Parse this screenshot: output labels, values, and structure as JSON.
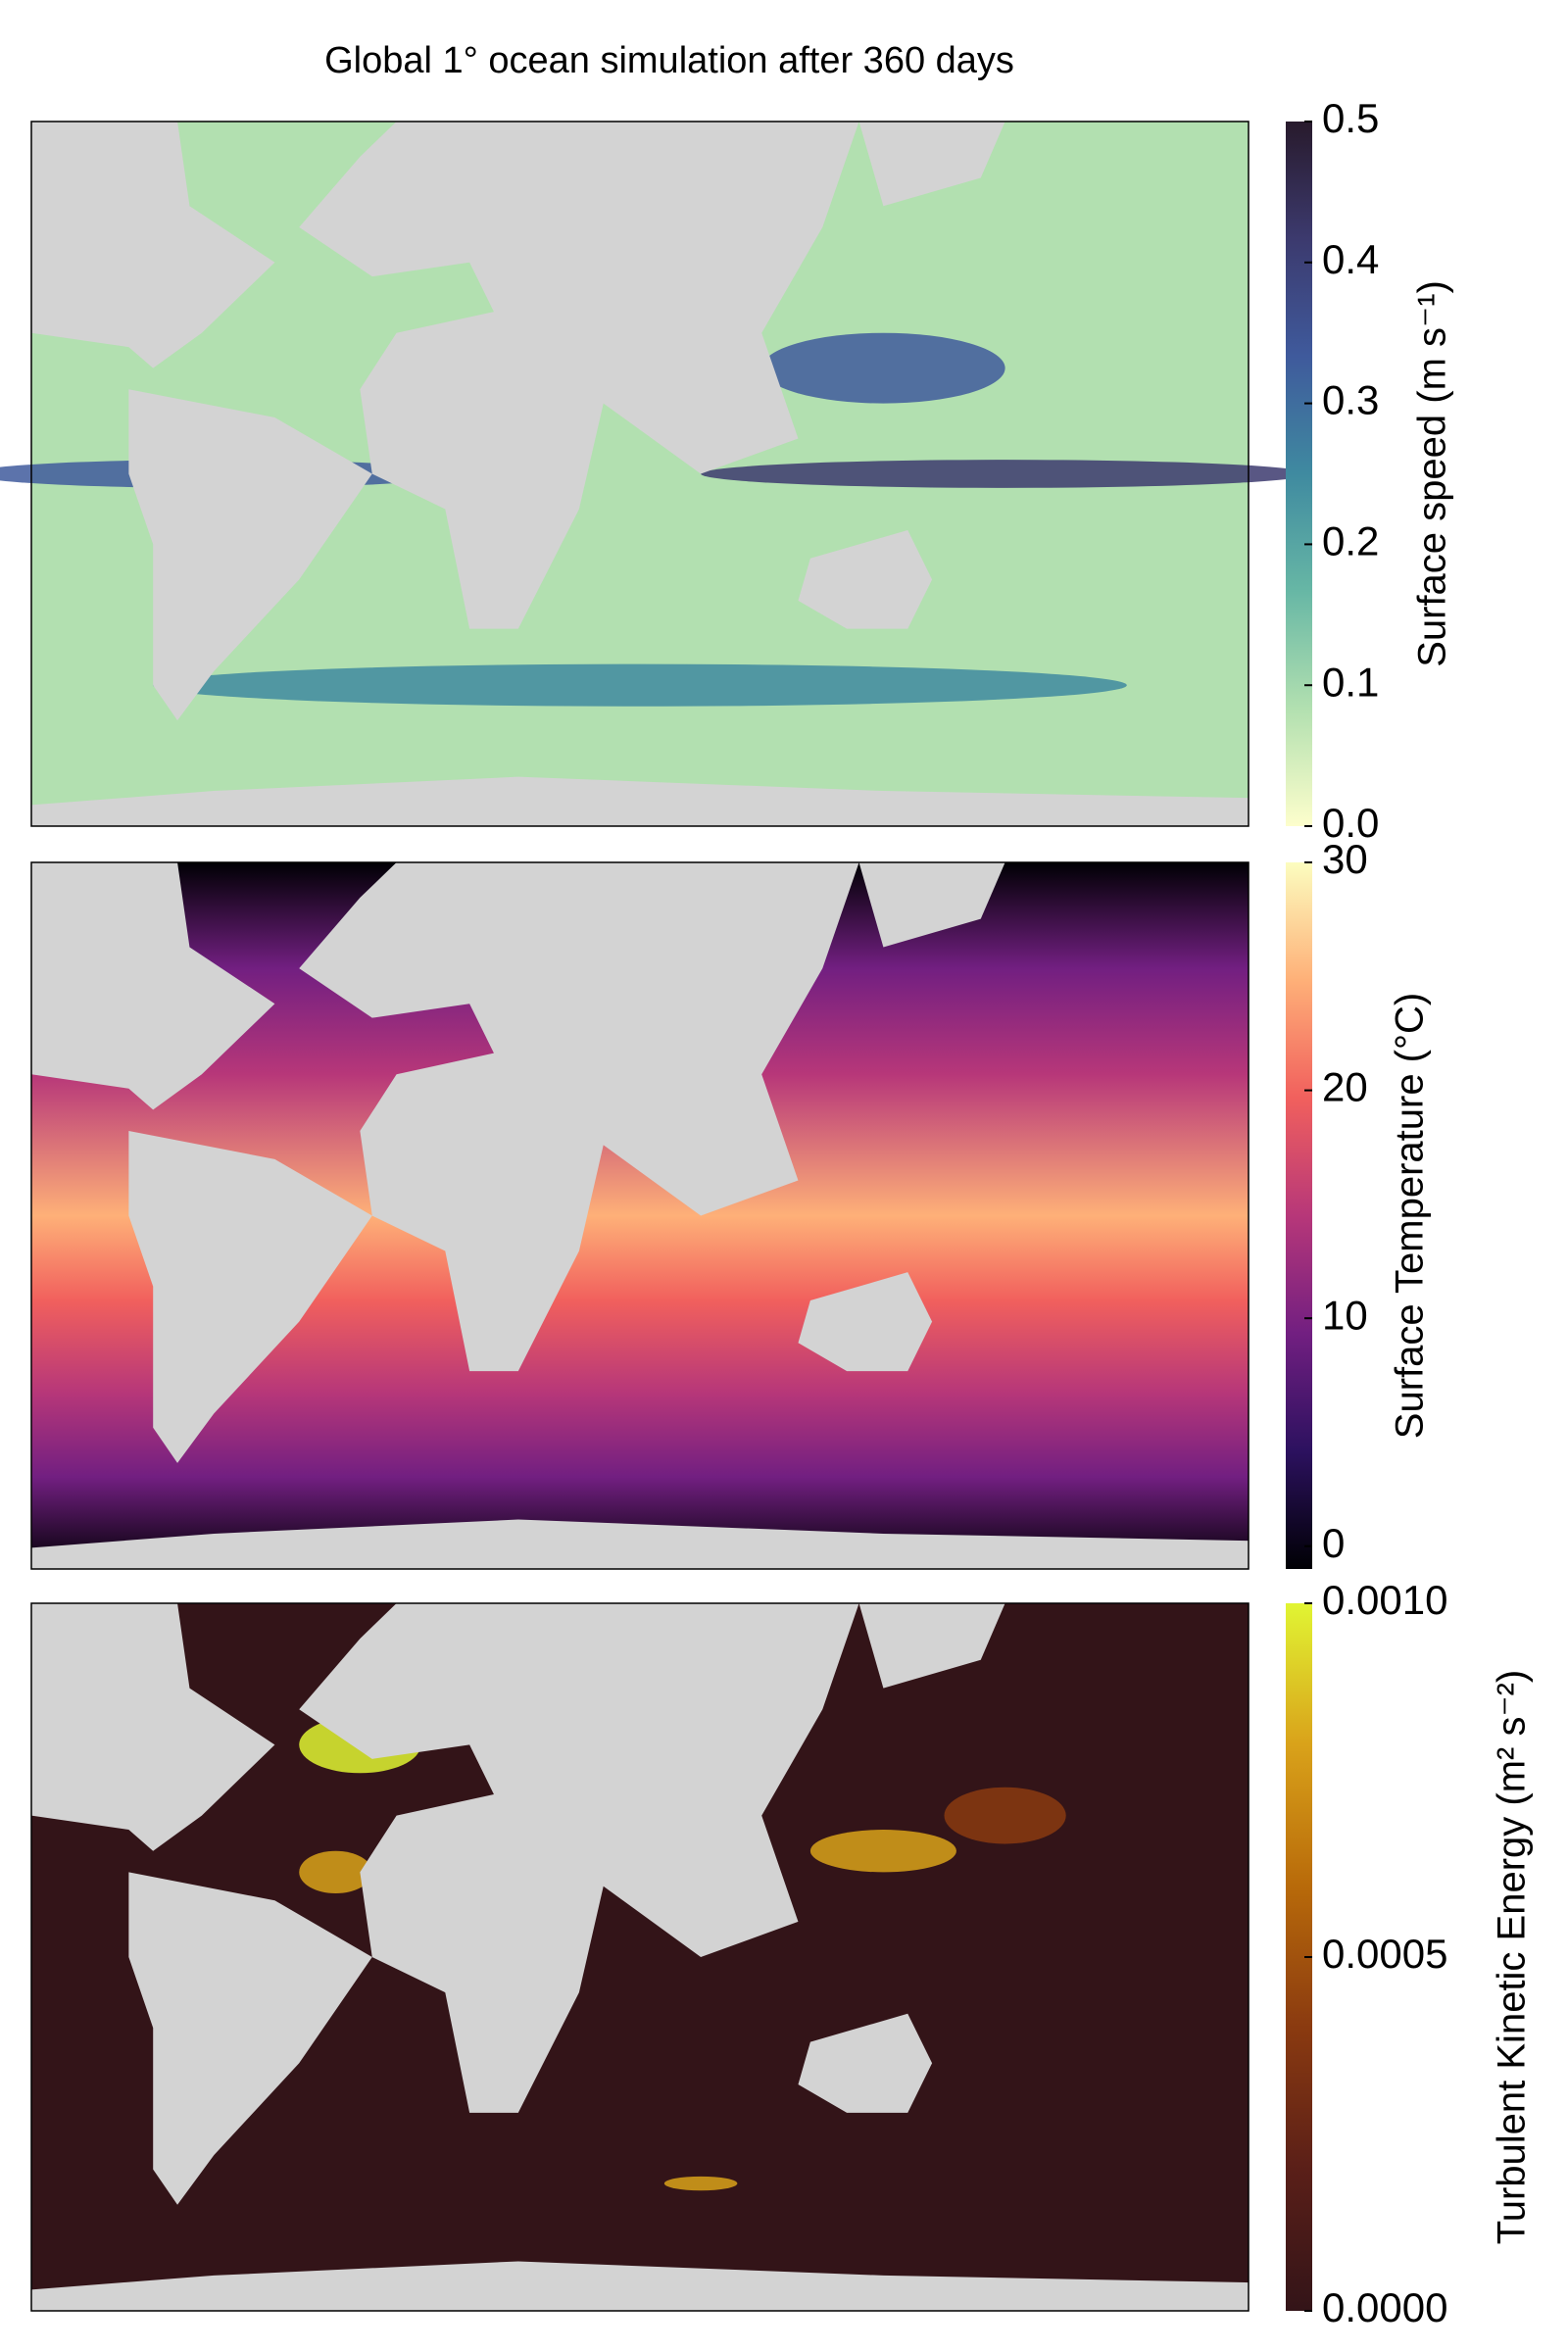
{
  "chart_data": [
    {
      "type": "heatmap",
      "title": "Global 1° ocean simulation after 360 days",
      "colorbar_label": "Surface speed (m s⁻¹)",
      "clim": [
        0,
        0.5
      ],
      "cticks": [
        {
          "value": 0,
          "label": "0.0"
        },
        0.1,
        0.2,
        0.3,
        0.4,
        0.5
      ],
      "colormap": [
        "#fdfecc",
        "#b2e0b0",
        "#67b7a5",
        "#3f8aa0",
        "#3f5a9c",
        "#3c3a6e",
        "#281a2c"
      ]
    },
    {
      "type": "heatmap",
      "colorbar_label": "Surface Temperature (°C)",
      "clim": [
        -1,
        30
      ],
      "cticks": [
        0,
        10,
        20,
        30
      ],
      "colormap": [
        "#000004",
        "#2c115f",
        "#721f81",
        "#b73779",
        "#f1605d",
        "#feb078",
        "#fcfdbf"
      ]
    },
    {
      "type": "heatmap",
      "colorbar_label": "Turbulent Kinetic Energy (m² s⁻²)",
      "clim": [
        0,
        0.001
      ],
      "cticks": [
        {
          "value": 0,
          "label": "0.0000"
        },
        0.0005,
        {
          "value": 0.001,
          "label": "0.0010"
        }
      ],
      "colormap": [
        "#331418",
        "#5a1f18",
        "#8a3a10",
        "#b86a0a",
        "#d9a21a",
        "#e1f533"
      ]
    }
  ]
}
